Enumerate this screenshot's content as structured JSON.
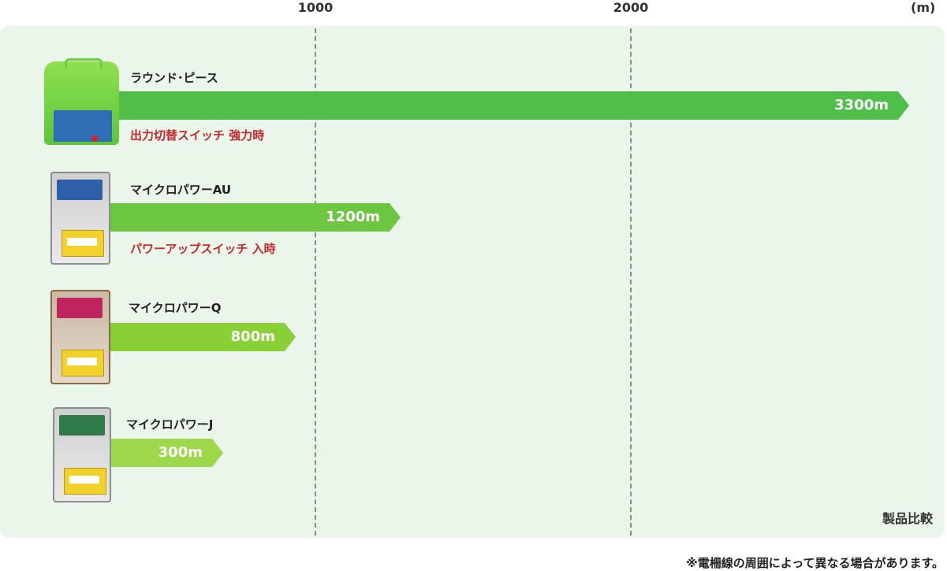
{
  "chart_data": {
    "type": "bar",
    "orientation": "horizontal",
    "title": "製品比較",
    "unit_label": "(m)",
    "x_ticks": [
      "1000",
      "2000"
    ],
    "grid": "vertical dashed",
    "categories": [
      "ラウンド･ピース",
      "マイクロパワーAU",
      "マイクロパワーQ",
      "マイクロパワーJ"
    ],
    "values": [
      3300,
      1200,
      800,
      300
    ],
    "value_labels": [
      "3300m",
      "1200m",
      "800m",
      "300m"
    ],
    "notes": [
      "出力切替スイッチ 強力時",
      "パワーアップスイッチ 入時",
      "",
      ""
    ],
    "colors": [
      "#4fbf4a",
      "#6cc63f",
      "#88d035",
      "#9dd84b"
    ]
  },
  "footnote": "※電柵線の周囲によって異なる場合があります。",
  "background_color": "#eaf6ea"
}
